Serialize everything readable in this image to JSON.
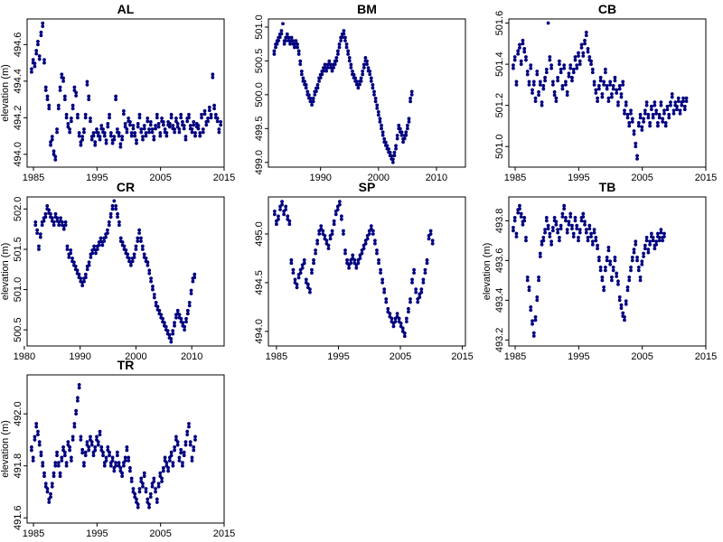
{
  "chart_data": [
    {
      "type": "scatter",
      "title": "AL",
      "ylabel": "elevation (m)",
      "xlim": [
        1984,
        2015
      ],
      "ylim": [
        493.93,
        494.74
      ],
      "xticks": [
        1985,
        1995,
        2005,
        2015
      ],
      "xtick_labels": [
        "1985",
        "1995",
        "2005",
        "2015"
      ],
      "yticks": [
        494.0,
        494.2,
        494.4,
        494.6
      ],
      "ytick_labels": [
        "494.0",
        "494.2",
        "494.4",
        "494.6"
      ],
      "color": "#00007f",
      "x_start": 1984.7,
      "x_step": 0.25,
      "y": [
        494.45,
        494.5,
        494.48,
        494.55,
        494.6,
        494.52,
        494.65,
        494.7,
        494.5,
        494.35,
        494.3,
        494.25,
        494.05,
        494.08,
        494.0,
        493.97,
        494.12,
        494.25,
        494.35,
        494.42,
        494.4,
        494.3,
        494.2,
        494.15,
        494.12,
        494.18,
        494.25,
        494.35,
        494.32,
        494.2,
        494.1,
        494.05,
        494.08,
        494.12,
        494.2,
        494.38,
        494.3,
        494.18,
        494.08,
        494.1,
        494.05,
        494.12,
        494.1,
        494.08,
        494.14,
        494.12,
        494.1,
        494.06,
        494.15,
        494.2,
        494.1,
        494.06,
        494.08,
        494.3,
        494.12,
        494.1,
        494.04,
        494.08,
        494.22,
        494.15,
        494.12,
        494.18,
        494.16,
        494.1,
        494.14,
        494.1,
        494.06,
        494.15,
        494.2,
        494.12,
        494.08,
        494.14,
        494.1,
        494.18,
        494.12,
        494.16,
        494.12,
        494.08,
        494.14,
        494.2,
        494.15,
        494.1,
        494.18,
        494.16,
        494.12,
        494.1,
        494.16,
        494.15,
        494.2,
        494.14,
        494.12,
        494.18,
        494.15,
        494.12,
        494.2,
        494.16,
        494.14,
        494.08,
        494.18,
        494.2,
        494.14,
        494.12,
        494.16,
        494.1,
        494.15,
        494.14,
        494.1,
        494.2,
        494.12,
        494.22,
        494.16,
        494.18,
        494.24,
        494.2,
        494.42,
        494.25,
        494.2,
        494.18,
        494.12,
        494.16
      ]
    },
    {
      "type": "scatter",
      "title": "BM",
      "ylabel": "",
      "xlim": [
        1981,
        2015
      ],
      "ylim": [
        498.93,
        501.12
      ],
      "xticks": [
        1990,
        2000,
        2010
      ],
      "xtick_labels": [
        "1990",
        "2000",
        "2010"
      ],
      "yticks": [
        499.0,
        499.5,
        500.0,
        500.5,
        501.0
      ],
      "ytick_labels": [
        "499.0",
        "499.5",
        "500.0",
        "500.5",
        "501.0"
      ],
      "color": "#00007f",
      "x_start": 1982.0,
      "x_step": 0.25,
      "y": [
        500.6,
        500.7,
        500.75,
        500.8,
        500.85,
        500.9,
        501.05,
        500.75,
        500.8,
        500.85,
        500.8,
        500.75,
        500.8,
        500.75,
        500.7,
        500.75,
        500.7,
        500.6,
        500.45,
        500.3,
        500.2,
        500.15,
        500.1,
        500.0,
        499.95,
        499.9,
        499.85,
        499.9,
        500.0,
        500.05,
        500.1,
        500.2,
        500.25,
        500.3,
        500.35,
        500.4,
        500.35,
        500.4,
        500.45,
        500.4,
        500.35,
        500.4,
        500.45,
        500.5,
        500.6,
        500.7,
        500.8,
        500.85,
        500.9,
        500.8,
        500.7,
        500.6,
        500.5,
        500.4,
        500.3,
        500.25,
        500.2,
        500.15,
        500.1,
        500.15,
        500.2,
        500.3,
        500.4,
        500.5,
        500.45,
        500.35,
        500.3,
        500.2,
        500.1,
        500.0,
        499.9,
        499.8,
        499.7,
        499.6,
        499.5,
        499.4,
        499.3,
        499.25,
        499.2,
        499.15,
        499.1,
        499.05,
        499.0,
        499.1,
        499.2,
        499.35,
        499.5,
        499.45,
        499.4,
        499.3,
        499.35,
        499.4,
        499.5,
        499.6,
        499.9,
        500.0
      ]
    },
    {
      "type": "scatter",
      "title": "CB",
      "ylabel": "",
      "xlim": [
        1984,
        2015
      ],
      "ylim": [
        500.9,
        501.62
      ],
      "xticks": [
        1985,
        1995,
        2005,
        2015
      ],
      "xtick_labels": [
        "1985",
        "1995",
        "2005",
        "2015"
      ],
      "yticks": [
        501.0,
        501.2,
        501.4,
        501.6
      ],
      "ytick_labels": [
        "501.0",
        "501.2",
        "501.4",
        "501.6"
      ],
      "color": "#00007f",
      "x_start": 1984.7,
      "x_step": 0.25,
      "y": [
        501.38,
        501.42,
        501.3,
        501.45,
        501.48,
        501.4,
        501.5,
        501.46,
        501.42,
        501.35,
        501.3,
        501.38,
        501.26,
        501.3,
        501.22,
        501.35,
        501.25,
        501.3,
        501.2,
        501.28,
        501.32,
        501.36,
        501.6,
        501.42,
        501.38,
        501.3,
        501.25,
        501.22,
        501.32,
        501.4,
        501.36,
        501.28,
        501.38,
        501.3,
        501.25,
        501.34,
        501.38,
        501.32,
        501.36,
        501.42,
        501.38,
        501.44,
        501.4,
        501.48,
        501.44,
        501.5,
        501.54,
        501.46,
        501.42,
        501.4,
        501.36,
        501.3,
        501.26,
        501.22,
        501.28,
        501.32,
        501.24,
        501.3,
        501.36,
        501.28,
        501.22,
        501.3,
        501.24,
        501.28,
        501.32,
        501.26,
        501.2,
        501.28,
        501.24,
        501.3,
        501.16,
        501.2,
        501.14,
        501.1,
        501.16,
        501.12,
        501.06,
        501.0,
        500.94,
        501.1,
        501.14,
        501.08,
        501.12,
        501.16,
        501.2,
        501.14,
        501.1,
        501.18,
        501.14,
        501.2,
        501.16,
        501.1,
        501.14,
        501.2,
        501.12,
        501.16,
        501.1,
        501.18,
        501.14,
        501.2,
        501.24,
        501.16,
        501.2,
        501.18,
        501.22,
        501.16,
        501.2,
        501.22,
        501.18,
        501.22
      ]
    },
    {
      "type": "scatter",
      "title": "CR",
      "ylabel": "elevation (m)",
      "xlim": [
        1980.5,
        2015.8
      ],
      "ylim": [
        500.3,
        502.15
      ],
      "xticks": [
        1980,
        1990,
        2000,
        2010
      ],
      "xtick_labels": [
        "1980",
        "1990",
        "2000",
        "2010"
      ],
      "yticks": [
        500.5,
        501.0,
        501.5,
        502.0
      ],
      "ytick_labels": [
        "500.5",
        "501.0",
        "501.5",
        "502.0"
      ],
      "color": "#00007f",
      "x_start": 1982.0,
      "x_step": 0.3,
      "y": [
        501.8,
        501.7,
        501.5,
        501.65,
        501.8,
        501.85,
        501.9,
        502.0,
        501.95,
        501.9,
        501.85,
        501.8,
        501.9,
        501.85,
        501.8,
        501.85,
        501.8,
        501.75,
        501.8,
        501.5,
        501.4,
        501.45,
        501.35,
        501.3,
        501.25,
        501.2,
        501.15,
        501.1,
        501.05,
        501.1,
        501.15,
        501.25,
        501.3,
        501.4,
        501.45,
        501.5,
        501.45,
        501.5,
        501.55,
        501.6,
        501.55,
        501.6,
        501.65,
        501.7,
        501.8,
        501.9,
        502.0,
        502.1,
        502.0,
        501.9,
        501.8,
        501.6,
        501.55,
        501.5,
        501.45,
        501.4,
        501.35,
        501.3,
        501.35,
        501.4,
        501.5,
        501.6,
        501.7,
        501.6,
        501.5,
        501.4,
        501.35,
        501.3,
        501.2,
        501.1,
        501.0,
        500.9,
        500.8,
        500.75,
        500.7,
        500.65,
        500.6,
        500.55,
        500.5,
        500.45,
        500.4,
        500.35,
        500.45,
        500.55,
        500.65,
        500.7,
        500.65,
        500.6,
        500.55,
        500.5,
        500.6,
        500.7,
        500.8,
        500.95,
        501.1,
        501.15
      ]
    },
    {
      "type": "scatter",
      "title": "SP",
      "ylabel": "",
      "xlim": [
        1983.7,
        2015.5
      ],
      "ylim": [
        493.85,
        495.38
      ],
      "xticks": [
        1985,
        1995,
        2005,
        2015
      ],
      "xtick_labels": [
        "1985",
        "1995",
        "2005",
        "2015"
      ],
      "yticks": [
        494.0,
        494.5,
        495.0
      ],
      "ytick_labels": [
        "494.0",
        "494.5",
        "495.0"
      ],
      "color": "#00007f",
      "x_start": 1984.7,
      "x_step": 0.3,
      "y": [
        495.2,
        495.1,
        495.15,
        495.25,
        495.3,
        495.2,
        495.25,
        495.15,
        495.1,
        494.7,
        494.6,
        494.5,
        494.45,
        494.55,
        494.6,
        494.65,
        494.7,
        494.5,
        494.45,
        494.4,
        494.6,
        494.7,
        494.8,
        494.9,
        495.0,
        495.05,
        495.0,
        494.95,
        494.9,
        494.85,
        494.95,
        495.0,
        495.1,
        495.2,
        495.25,
        495.3,
        495.15,
        495.0,
        494.8,
        494.7,
        494.65,
        494.7,
        494.75,
        494.7,
        494.65,
        494.7,
        494.75,
        494.8,
        494.85,
        494.9,
        494.95,
        495.0,
        495.05,
        495.0,
        494.9,
        494.8,
        494.7,
        494.6,
        494.5,
        494.4,
        494.3,
        494.2,
        494.15,
        494.1,
        494.05,
        494.1,
        494.15,
        494.1,
        494.05,
        494.0,
        493.95,
        494.1,
        494.2,
        494.3,
        494.5,
        494.6,
        494.4,
        494.3,
        494.35,
        494.4,
        494.5,
        494.6,
        494.7,
        494.95,
        495.0,
        494.9
      ]
    },
    {
      "type": "scatter",
      "title": "TB",
      "ylabel": "elevation (m)",
      "xlim": [
        1984,
        2015
      ],
      "ylim": [
        493.17,
        493.92
      ],
      "xticks": [
        1985,
        1995,
        2005,
        2015
      ],
      "xtick_labels": [
        "1985",
        "1995",
        "2005",
        "2015"
      ],
      "yticks": [
        493.2,
        493.4,
        493.6,
        493.8
      ],
      "ytick_labels": [
        "493.2",
        "493.4",
        "493.6",
        "493.8"
      ],
      "color": "#00007f",
      "x_start": 1984.7,
      "x_step": 0.25,
      "y": [
        493.75,
        493.8,
        493.72,
        493.84,
        493.86,
        493.82,
        493.78,
        493.8,
        493.7,
        493.5,
        493.45,
        493.35,
        493.28,
        493.22,
        493.3,
        493.4,
        493.5,
        493.62,
        493.68,
        493.7,
        493.74,
        493.8,
        493.76,
        493.72,
        493.68,
        493.75,
        493.8,
        493.78,
        493.74,
        493.7,
        493.76,
        493.82,
        493.86,
        493.8,
        493.74,
        493.78,
        493.82,
        493.76,
        493.72,
        493.8,
        493.76,
        493.7,
        493.74,
        493.8,
        493.82,
        493.78,
        493.74,
        493.7,
        493.76,
        493.72,
        493.68,
        493.74,
        493.7,
        493.66,
        493.6,
        493.55,
        493.5,
        493.45,
        493.55,
        493.6,
        493.65,
        493.58,
        493.5,
        493.55,
        493.6,
        493.52,
        493.48,
        493.4,
        493.36,
        493.32,
        493.3,
        493.38,
        493.45,
        493.5,
        493.55,
        493.6,
        493.64,
        493.68,
        493.6,
        493.55,
        493.5,
        493.58,
        493.62,
        493.66,
        493.7,
        493.64,
        493.68,
        493.72,
        493.7,
        493.66,
        493.68,
        493.72,
        493.7,
        493.74,
        493.7,
        493.72
      ]
    },
    {
      "type": "scatter",
      "title": "TR",
      "ylabel": "elevation (m)",
      "xlim": [
        1984,
        2015
      ],
      "ylim": [
        491.58,
        492.15
      ],
      "xticks": [
        1985,
        1995,
        2005,
        2015
      ],
      "xtick_labels": [
        "1985",
        "1995",
        "2005",
        "2015"
      ],
      "yticks": [
        491.6,
        491.8,
        492.0
      ],
      "ytick_labels": [
        "491.6",
        "491.8",
        "492.0"
      ],
      "color": "#00007f",
      "x_start": 1984.7,
      "x_step": 0.25,
      "y": [
        491.86,
        491.82,
        491.9,
        491.95,
        491.92,
        491.88,
        491.84,
        491.8,
        491.76,
        491.72,
        491.7,
        491.66,
        491.68,
        491.72,
        491.76,
        491.8,
        491.84,
        491.8,
        491.76,
        491.82,
        491.86,
        491.84,
        491.8,
        491.88,
        491.86,
        491.82,
        491.9,
        491.95,
        492.0,
        492.05,
        492.1,
        491.9,
        491.85,
        491.8,
        491.84,
        491.88,
        491.86,
        491.9,
        491.88,
        491.84,
        491.86,
        491.9,
        491.88,
        491.92,
        491.86,
        491.84,
        491.8,
        491.82,
        491.86,
        491.84,
        491.8,
        491.82,
        491.78,
        491.8,
        491.84,
        491.8,
        491.78,
        491.76,
        491.8,
        491.82,
        491.86,
        491.82,
        491.78,
        491.74,
        491.7,
        491.68,
        491.66,
        491.64,
        491.7,
        491.74,
        491.72,
        491.76,
        491.7,
        491.66,
        491.64,
        491.68,
        491.72,
        491.74,
        491.7,
        491.66,
        491.72,
        491.76,
        491.74,
        491.78,
        491.82,
        491.8,
        491.78,
        491.82,
        491.84,
        491.8,
        491.86,
        491.9,
        491.88,
        491.82,
        491.85,
        491.8,
        491.84,
        491.88,
        491.92,
        491.95,
        491.88,
        491.82,
        491.86,
        491.9
      ]
    }
  ]
}
